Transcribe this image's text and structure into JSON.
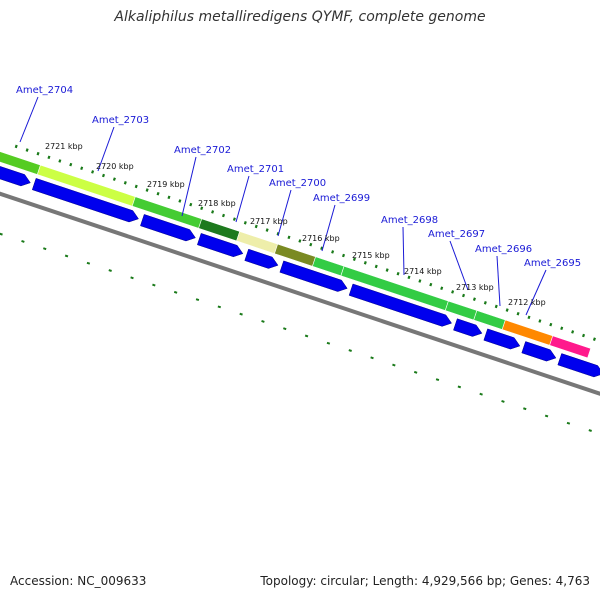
{
  "title": "Alkaliphilus metalliredigens QYMF, complete genome",
  "footer": {
    "accession": "Accession: NC_009633",
    "topology": "Topology: circular; Length: 4,929,566 bp; Genes: 4,763"
  },
  "colors": {
    "forward_cds": "#0000ee",
    "backbone": "#777777",
    "tick": "#1a7a1a",
    "gene_label": "#1a1ad6"
  },
  "gene_labels": [
    "Amet_2704",
    "Amet_2703",
    "Amet_2702",
    "Amet_2701",
    "Amet_2700",
    "Amet_2699",
    "Amet_2698",
    "Amet_2697",
    "Amet_2696",
    "Amet_2695"
  ],
  "kbp_labels": [
    "2721 kbp",
    "2720 kbp",
    "2719 kbp",
    "2718 kbp",
    "2717 kbp",
    "2716 kbp",
    "2715 kbp",
    "2714 kbp",
    "2713 kbp",
    "2712 kbp"
  ],
  "feature_colors": [
    "#55cc22",
    "#ccff44",
    "#44cc33",
    "#1e7a1e",
    "#eeeeaa",
    "#7a8a22",
    "#33cc44",
    "#33cc44",
    "#33cc44",
    "#33cc44",
    "#ff8800",
    "#ff1a8c"
  ]
}
